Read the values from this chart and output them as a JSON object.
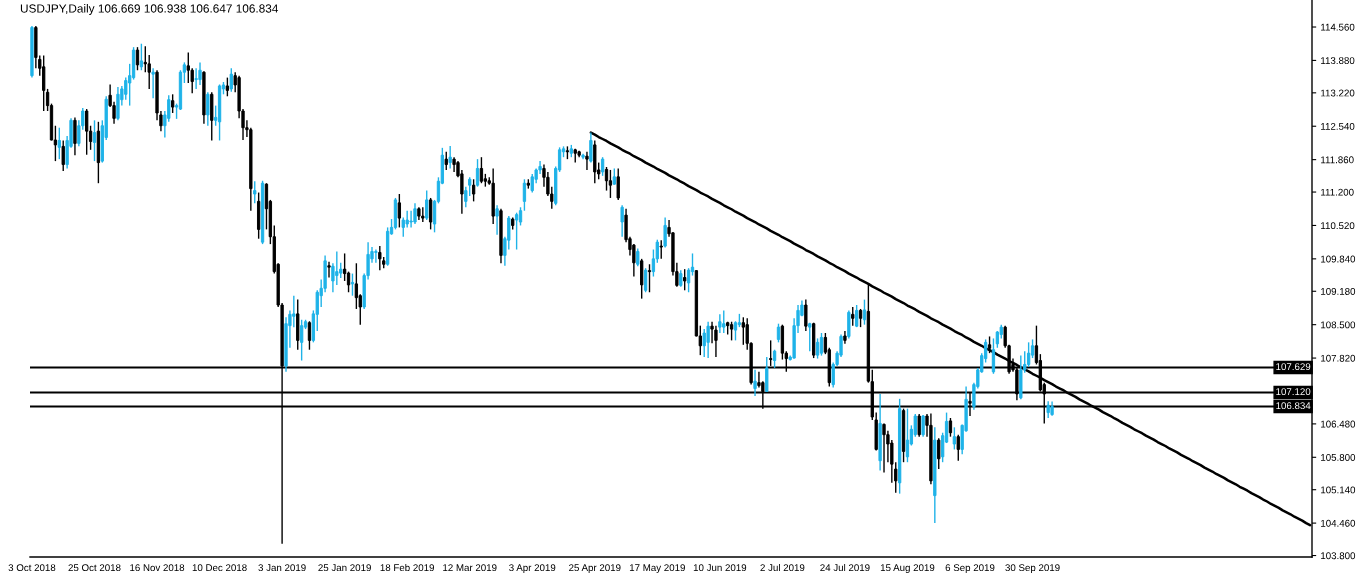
{
  "chart_data": {
    "type": "candlestick",
    "title": "USDJPY,Daily 106.669 106.938 106.647 106.834",
    "categories": [
      "3 Oct 2018",
      null,
      null,
      null,
      null,
      null,
      null,
      null,
      null,
      null,
      null,
      null,
      null,
      null,
      null,
      null,
      "25 Oct 2018",
      null,
      null,
      null,
      null,
      null,
      null,
      null,
      null,
      null,
      null,
      null,
      null,
      null,
      null,
      null,
      "16 Nov 2018",
      null,
      null,
      null,
      null,
      null,
      null,
      null,
      null,
      null,
      null,
      null,
      null,
      null,
      null,
      null,
      "10 Dec 2018",
      null,
      null,
      null,
      null,
      null,
      null,
      null,
      null,
      null,
      null,
      null,
      null,
      null,
      null,
      null,
      "3 Jan 2019",
      null,
      null,
      null,
      null,
      null,
      null,
      null,
      null,
      null,
      null,
      null,
      null,
      null,
      null,
      null,
      "25 Jan 2019",
      null,
      null,
      null,
      null,
      null,
      null,
      null,
      null,
      null,
      null,
      null,
      null,
      null,
      null,
      null,
      "18 Feb 2019",
      null,
      null,
      null,
      null,
      null,
      null,
      null,
      null,
      null,
      null,
      null,
      null,
      null,
      null,
      null,
      "12 Mar 2019",
      null,
      null,
      null,
      null,
      null,
      null,
      null,
      null,
      null,
      null,
      null,
      null,
      null,
      null,
      null,
      "3 Apr 2019",
      null,
      null,
      null,
      null,
      null,
      null,
      null,
      null,
      null,
      null,
      null,
      null,
      null,
      null,
      null,
      "25 Apr 2019",
      null,
      null,
      null,
      null,
      null,
      null,
      null,
      null,
      null,
      null,
      null,
      null,
      null,
      null,
      null,
      "17 May 2019",
      null,
      null,
      null,
      null,
      null,
      null,
      null,
      null,
      null,
      null,
      null,
      null,
      null,
      null,
      null,
      "10 Jun 2019",
      null,
      null,
      null,
      null,
      null,
      null,
      null,
      null,
      null,
      null,
      null,
      null,
      null,
      null,
      null,
      "2 Jul 2019",
      null,
      null,
      null,
      null,
      null,
      null,
      null,
      null,
      null,
      null,
      null,
      null,
      null,
      null,
      null,
      "24 Jul 2019",
      null,
      null,
      null,
      null,
      null,
      null,
      null,
      null,
      null,
      null,
      null,
      null,
      null,
      null,
      null,
      "15 Aug 2019",
      null,
      null,
      null,
      null,
      null,
      null,
      null,
      null,
      null,
      null,
      null,
      null,
      null,
      null,
      null,
      "6 Sep 2019",
      null,
      null,
      null,
      null,
      null,
      null,
      null,
      null,
      null,
      null,
      null,
      null,
      null,
      null,
      null,
      "30 Sep 2019",
      null,
      null,
      null,
      null,
      null,
      null,
      null,
      null,
      null,
      null,
      null,
      null,
      null,
      null,
      null,
      null,
      null,
      null,
      null,
      null,
      null,
      null,
      null,
      null,
      null,
      null,
      null,
      null,
      null,
      null,
      null,
      null,
      null,
      null,
      null,
      null,
      null,
      null,
      null,
      null,
      null,
      null,
      null,
      null,
      null,
      null,
      null,
      null,
      null,
      null,
      null,
      null,
      null,
      null,
      null,
      null,
      null,
      null,
      null,
      null,
      null,
      null,
      null,
      null,
      null,
      null,
      null,
      null,
      null,
      null,
      null
    ],
    "ohlc": [
      [
        113.57,
        114.58,
        113.53,
        114.55
      ],
      [
        114.55,
        114.58,
        113.72,
        113.94
      ],
      [
        113.9,
        113.98,
        113.57,
        113.72
      ],
      [
        113.75,
        113.98,
        112.85,
        113.27
      ],
      [
        113.23,
        113.3,
        112.85,
        112.96
      ],
      [
        112.96,
        113.0,
        112.25,
        112.26
      ],
      [
        112.26,
        112.55,
        111.83,
        112.16
      ],
      [
        112.11,
        112.51,
        111.87,
        112.25
      ],
      [
        112.13,
        112.25,
        111.63,
        111.76
      ],
      [
        111.76,
        112.34,
        111.68,
        112.25
      ],
      [
        112.13,
        112.7,
        112.1,
        112.66
      ],
      [
        112.66,
        112.72,
        111.95,
        112.19
      ],
      [
        112.19,
        112.66,
        112.13,
        112.55
      ],
      [
        112.55,
        112.91,
        112.47,
        112.85
      ],
      [
        112.85,
        112.89,
        111.96,
        112.44
      ],
      [
        112.44,
        112.55,
        112.06,
        112.23
      ],
      [
        112.21,
        112.66,
        111.83,
        112.41
      ],
      [
        112.44,
        112.63,
        111.38,
        111.8
      ],
      [
        111.83,
        112.66,
        111.8,
        112.55
      ],
      [
        112.31,
        113.15,
        112.26,
        113.09
      ],
      [
        113.17,
        113.39,
        112.93,
        112.96
      ],
      [
        112.96,
        113.04,
        112.59,
        112.7
      ],
      [
        112.7,
        113.34,
        112.66,
        113.19
      ],
      [
        113.08,
        113.36,
        112.96,
        113.3
      ],
      [
        113.19,
        113.53,
        113.08,
        113.47
      ],
      [
        113.42,
        113.81,
        112.96,
        113.57
      ],
      [
        113.53,
        114.15,
        113.49,
        114.09
      ],
      [
        114.09,
        114.15,
        113.68,
        113.79
      ],
      [
        113.75,
        114.22,
        113.68,
        113.87
      ],
      [
        113.84,
        114.17,
        113.64,
        113.81
      ],
      [
        113.81,
        113.99,
        113.3,
        113.64
      ],
      [
        113.6,
        113.72,
        113.11,
        113.64
      ],
      [
        113.64,
        113.68,
        112.66,
        112.81
      ],
      [
        112.77,
        112.85,
        112.44,
        112.55
      ],
      [
        112.55,
        112.85,
        112.31,
        112.77
      ],
      [
        112.7,
        113.17,
        112.63,
        113.08
      ],
      [
        113.06,
        113.19,
        112.81,
        112.93
      ],
      [
        112.93,
        113.0,
        112.69,
        112.96
      ],
      [
        112.89,
        113.68,
        112.87,
        113.64
      ],
      [
        113.64,
        113.84,
        113.42,
        113.79
      ],
      [
        113.77,
        114.04,
        113.42,
        113.68
      ],
      [
        113.68,
        113.72,
        113.21,
        113.45
      ],
      [
        113.49,
        113.72,
        113.3,
        113.51
      ],
      [
        113.49,
        113.84,
        113.38,
        113.68
      ],
      [
        113.64,
        113.66,
        112.59,
        112.77
      ],
      [
        112.77,
        113.23,
        112.55,
        113.19
      ],
      [
        113.19,
        113.23,
        112.25,
        112.66
      ],
      [
        112.66,
        112.96,
        112.55,
        112.72
      ],
      [
        112.63,
        113.39,
        112.25,
        113.36
      ],
      [
        113.3,
        113.44,
        113.19,
        113.38
      ],
      [
        113.36,
        113.53,
        113.15,
        113.27
      ],
      [
        113.3,
        113.72,
        113.24,
        113.6
      ],
      [
        113.57,
        113.64,
        113.23,
        113.38
      ],
      [
        113.53,
        113.57,
        112.7,
        112.85
      ],
      [
        112.85,
        112.89,
        112.26,
        112.51
      ],
      [
        112.51,
        112.66,
        112.32,
        112.47
      ],
      [
        112.47,
        112.51,
        110.82,
        111.27
      ],
      [
        111.16,
        111.42,
        110.97,
        111.23
      ],
      [
        111.01,
        111.19,
        110.25,
        110.44
      ],
      [
        110.18,
        111.43,
        110.14,
        111.38
      ],
      [
        111.36,
        111.38,
        110.44,
        110.86
      ],
      [
        111.01,
        111.04,
        110.14,
        110.29
      ],
      [
        110.29,
        110.52,
        109.54,
        109.58
      ],
      [
        109.73,
        109.75,
        108.86,
        108.9
      ],
      [
        108.9,
        108.94,
        104.04,
        107.66
      ],
      [
        107.66,
        108.65,
        107.54,
        108.52
      ],
      [
        108.48,
        108.79,
        108.03,
        108.71
      ],
      [
        108.67,
        109.09,
        108.45,
        108.72
      ],
      [
        108.72,
        109.01,
        107.99,
        108.18
      ],
      [
        108.14,
        108.6,
        107.77,
        108.48
      ],
      [
        108.45,
        108.6,
        108.41,
        108.56
      ],
      [
        108.54,
        108.57,
        107.99,
        108.18
      ],
      [
        108.18,
        108.79,
        108.14,
        108.72
      ],
      [
        108.71,
        109.2,
        108.37,
        109.16
      ],
      [
        109.09,
        109.42,
        108.86,
        109.24
      ],
      [
        109.24,
        109.91,
        109.16,
        109.8
      ],
      [
        109.7,
        109.78,
        109.46,
        109.67
      ],
      [
        109.39,
        109.75,
        109.16,
        109.69
      ],
      [
        109.5,
        109.99,
        109.31,
        109.58
      ],
      [
        109.55,
        109.76,
        109.45,
        109.63
      ],
      [
        109.63,
        109.95,
        109.39,
        109.54
      ],
      [
        109.55,
        109.58,
        109.16,
        109.31
      ],
      [
        109.33,
        109.54,
        109.09,
        109.36
      ],
      [
        109.33,
        109.75,
        108.82,
        109.05
      ],
      [
        109.09,
        109.12,
        108.5,
        108.86
      ],
      [
        108.86,
        109.54,
        108.82,
        109.5
      ],
      [
        109.5,
        110.18,
        109.42,
        109.93
      ],
      [
        109.84,
        110.08,
        109.76,
        109.99
      ],
      [
        109.97,
        110.03,
        109.76,
        109.99
      ],
      [
        109.97,
        110.1,
        109.61,
        109.84
      ],
      [
        109.8,
        109.88,
        109.65,
        109.73
      ],
      [
        109.73,
        110.48,
        109.7,
        110.4
      ],
      [
        110.35,
        110.65,
        110.33,
        110.48
      ],
      [
        110.48,
        111.08,
        110.44,
        111.04
      ],
      [
        110.98,
        111.16,
        110.48,
        110.67
      ],
      [
        110.48,
        110.68,
        110.29,
        110.63
      ],
      [
        110.55,
        110.82,
        110.48,
        110.63
      ],
      [
        110.59,
        110.82,
        110.48,
        110.61
      ],
      [
        110.59,
        110.97,
        110.55,
        110.86
      ],
      [
        110.86,
        110.89,
        110.63,
        110.71
      ],
      [
        110.71,
        110.89,
        110.59,
        110.67
      ],
      [
        110.67,
        111.23,
        110.63,
        111.04
      ],
      [
        111.04,
        111.08,
        110.44,
        110.59
      ],
      [
        110.55,
        111.04,
        110.38,
        111.01
      ],
      [
        111.01,
        111.5,
        110.97,
        111.42
      ],
      [
        111.38,
        112.1,
        111.36,
        111.95
      ],
      [
        111.87,
        112.02,
        111.65,
        111.76
      ],
      [
        111.8,
        112.14,
        111.68,
        111.91
      ],
      [
        111.87,
        111.91,
        111.61,
        111.76
      ],
      [
        111.8,
        111.83,
        111.5,
        111.53
      ],
      [
        111.57,
        111.65,
        110.76,
        111.16
      ],
      [
        111.01,
        111.31,
        110.89,
        111.23
      ],
      [
        111.34,
        111.5,
        111.12,
        111.46
      ],
      [
        111.34,
        111.46,
        111.01,
        111.16
      ],
      [
        111.34,
        111.87,
        111.31,
        111.68
      ],
      [
        111.68,
        111.91,
        111.38,
        111.42
      ],
      [
        111.47,
        111.57,
        111.31,
        111.42
      ],
      [
        111.43,
        111.5,
        111.35,
        111.38
      ],
      [
        111.38,
        111.68,
        110.55,
        110.71
      ],
      [
        110.71,
        110.93,
        110.33,
        110.86
      ],
      [
        110.82,
        110.86,
        109.75,
        109.91
      ],
      [
        109.91,
        110.29,
        109.7,
        110.25
      ],
      [
        110.22,
        110.71,
        110.03,
        110.67
      ],
      [
        110.65,
        110.68,
        110.44,
        110.52
      ],
      [
        110.63,
        110.78,
        110.03,
        110.74
      ],
      [
        110.59,
        110.89,
        110.52,
        110.82
      ],
      [
        111.01,
        111.46,
        110.82,
        111.38
      ],
      [
        111.38,
        111.46,
        111.27,
        111.34
      ],
      [
        111.23,
        111.57,
        111.19,
        111.51
      ],
      [
        111.46,
        111.68,
        111.38,
        111.65
      ],
      [
        111.65,
        111.83,
        111.57,
        111.72
      ],
      [
        111.68,
        111.76,
        111.31,
        111.5
      ],
      [
        111.5,
        111.61,
        111.12,
        111.16
      ],
      [
        111.16,
        111.31,
        110.86,
        111.01
      ],
      [
        110.97,
        111.72,
        110.93,
        111.68
      ],
      [
        111.65,
        112.11,
        111.61,
        112.06
      ],
      [
        112.02,
        112.13,
        111.91,
        112.08
      ],
      [
        112.04,
        112.13,
        111.87,
        112.02
      ],
      [
        111.99,
        112.16,
        111.91,
        112.08
      ],
      [
        112.06,
        112.08,
        111.8,
        111.99
      ],
      [
        112.02,
        112.04,
        111.91,
        111.95
      ],
      [
        111.91,
        111.98,
        111.87,
        111.95
      ],
      [
        111.93,
        112.02,
        111.65,
        111.87
      ],
      [
        111.83,
        112.41,
        111.8,
        112.25
      ],
      [
        112.16,
        112.25,
        111.38,
        111.61
      ],
      [
        111.65,
        111.8,
        111.46,
        111.57
      ],
      [
        111.61,
        111.91,
        111.53,
        111.87
      ],
      [
        111.66,
        111.71,
        111.23,
        111.43
      ],
      [
        111.43,
        111.65,
        111.08,
        111.34
      ],
      [
        111.36,
        111.68,
        111.35,
        111.51
      ],
      [
        111.51,
        111.68,
        111.04,
        111.08
      ],
      [
        110.59,
        110.93,
        110.29,
        110.89
      ],
      [
        110.73,
        110.86,
        110.18,
        110.23
      ],
      [
        110.25,
        110.29,
        109.91,
        110.03
      ],
      [
        110.12,
        110.14,
        109.48,
        109.76
      ],
      [
        109.73,
        110.05,
        109.69,
        109.99
      ],
      [
        109.8,
        109.84,
        109.03,
        109.31
      ],
      [
        109.2,
        109.65,
        109.16,
        109.61
      ],
      [
        109.6,
        109.73,
        109.16,
        109.58
      ],
      [
        109.58,
        110.03,
        109.48,
        109.84
      ],
      [
        109.84,
        110.23,
        109.76,
        110.18
      ],
      [
        110.1,
        110.22,
        109.84,
        110.08
      ],
      [
        110.1,
        110.68,
        110.07,
        110.52
      ],
      [
        110.48,
        110.63,
        110.29,
        110.35
      ],
      [
        110.37,
        110.38,
        109.5,
        109.58
      ],
      [
        109.58,
        109.76,
        109.27,
        109.3
      ],
      [
        109.3,
        109.61,
        109.27,
        109.54
      ],
      [
        109.46,
        109.63,
        109.2,
        109.39
      ],
      [
        109.35,
        109.65,
        109.16,
        109.61
      ],
      [
        109.58,
        109.95,
        109.5,
        109.67
      ],
      [
        109.6,
        109.61,
        108.26,
        108.27
      ],
      [
        108.27,
        108.48,
        107.88,
        108.07
      ],
      [
        108.07,
        108.41,
        107.84,
        108.33
      ],
      [
        108.14,
        108.56,
        107.82,
        108.47
      ],
      [
        108.47,
        108.56,
        108.12,
        108.41
      ],
      [
        108.39,
        108.48,
        107.84,
        108.18
      ],
      [
        108.45,
        108.71,
        108.33,
        108.56
      ],
      [
        108.45,
        108.79,
        108.33,
        108.52
      ],
      [
        108.54,
        108.56,
        108.3,
        108.48
      ],
      [
        108.5,
        108.56,
        108.18,
        108.41
      ],
      [
        108.39,
        108.57,
        108.18,
        108.54
      ],
      [
        108.5,
        108.72,
        108.45,
        108.54
      ],
      [
        108.54,
        108.65,
        108.09,
        108.45
      ],
      [
        108.5,
        108.63,
        107.99,
        108.12
      ],
      [
        108.12,
        108.14,
        107.28,
        107.32
      ],
      [
        107.2,
        107.58,
        107.05,
        107.35
      ],
      [
        107.32,
        107.54,
        107.22,
        107.26
      ],
      [
        107.32,
        107.35,
        106.79,
        107.14
      ],
      [
        107.14,
        107.84,
        107.13,
        107.62
      ],
      [
        107.81,
        108.18,
        107.66,
        107.79
      ],
      [
        107.77,
        107.99,
        107.62,
        107.96
      ],
      [
        108.2,
        108.52,
        108.14,
        108.45
      ],
      [
        108.47,
        108.5,
        107.79,
        107.92
      ],
      [
        107.92,
        107.96,
        107.54,
        107.81
      ],
      [
        107.79,
        107.87,
        107.77,
        107.84
      ],
      [
        107.82,
        108.63,
        107.81,
        108.48
      ],
      [
        108.48,
        108.9,
        108.33,
        108.79
      ],
      [
        108.69,
        108.99,
        108.67,
        108.9
      ],
      [
        108.9,
        109.01,
        108.37,
        108.47
      ],
      [
        108.45,
        108.54,
        107.96,
        108.52
      ],
      [
        108.52,
        108.54,
        107.82,
        107.88
      ],
      [
        107.88,
        108.22,
        107.81,
        108.14
      ],
      [
        107.92,
        108.33,
        107.87,
        108.24
      ],
      [
        108.24,
        108.33,
        107.9,
        107.94
      ],
      [
        107.99,
        108.03,
        107.24,
        107.32
      ],
      [
        107.28,
        107.73,
        107.22,
        107.69
      ],
      [
        107.69,
        107.96,
        107.66,
        107.92
      ],
      [
        107.88,
        108.3,
        107.84,
        108.26
      ],
      [
        108.27,
        108.37,
        108.11,
        108.18
      ],
      [
        108.26,
        108.79,
        108.22,
        108.75
      ],
      [
        108.71,
        108.86,
        108.48,
        108.63
      ],
      [
        108.47,
        108.9,
        108.45,
        108.79
      ],
      [
        108.79,
        108.82,
        108.45,
        108.63
      ],
      [
        108.6,
        109.01,
        108.5,
        108.8
      ],
      [
        108.77,
        109.33,
        107.32,
        107.35
      ],
      [
        107.34,
        107.58,
        106.56,
        106.62
      ],
      [
        106.56,
        106.71,
        105.94,
        105.96
      ],
      [
        105.73,
        107.09,
        105.53,
        106.49
      ],
      [
        106.47,
        106.49,
        105.49,
        106.26
      ],
      [
        106.26,
        106.34,
        105.7,
        106.07
      ],
      [
        106.09,
        106.15,
        105.28,
        105.66
      ],
      [
        105.56,
        105.7,
        105.08,
        105.32
      ],
      [
        105.28,
        106.99,
        105.06,
        106.79
      ],
      [
        106.75,
        106.79,
        105.7,
        105.92
      ],
      [
        105.81,
        106.79,
        105.7,
        106.15
      ],
      [
        106.07,
        106.45,
        106.04,
        106.37
      ],
      [
        106.26,
        106.68,
        106.22,
        106.64
      ],
      [
        106.64,
        106.68,
        106.22,
        106.26
      ],
      [
        106.26,
        106.66,
        106.22,
        106.64
      ],
      [
        106.64,
        106.68,
        106.22,
        106.45
      ],
      [
        106.45,
        106.69,
        105.25,
        105.32
      ],
      [
        105.02,
        106.41,
        104.46,
        106.15
      ],
      [
        106.15,
        106.19,
        105.56,
        105.77
      ],
      [
        105.81,
        106.3,
        105.7,
        106.24
      ],
      [
        106.11,
        106.71,
        106.09,
        106.53
      ],
      [
        106.54,
        106.6,
        106.22,
        106.3
      ],
      [
        106.07,
        106.41,
        105.96,
        106.22
      ],
      [
        106.22,
        106.26,
        105.73,
        105.96
      ],
      [
        105.96,
        106.47,
        105.86,
        106.45
      ],
      [
        106.34,
        107.24,
        106.32,
        106.98
      ],
      [
        106.94,
        107.13,
        106.64,
        106.9
      ],
      [
        106.83,
        107.32,
        106.77,
        107.28
      ],
      [
        107.24,
        107.62,
        107.2,
        107.58
      ],
      [
        107.54,
        107.92,
        107.52,
        107.87
      ],
      [
        107.81,
        108.2,
        107.73,
        108.14
      ],
      [
        108.09,
        108.26,
        107.92,
        108.02
      ],
      [
        107.54,
        108.22,
        107.5,
        107.99
      ],
      [
        108.11,
        108.37,
        108.03,
        108.35
      ],
      [
        108.3,
        108.5,
        108.22,
        108.45
      ],
      [
        108.45,
        108.48,
        108.03,
        108.07
      ],
      [
        108.07,
        108.09,
        107.5,
        107.54
      ],
      [
        107.69,
        107.81,
        107.54,
        107.58
      ],
      [
        107.58,
        107.62,
        106.96,
        107.09
      ],
      [
        107.01,
        107.87,
        106.98,
        107.58
      ],
      [
        107.58,
        107.96,
        107.52,
        107.69
      ],
      [
        107.69,
        108.14,
        107.64,
        107.92
      ],
      [
        107.88,
        108.2,
        107.82,
        108.07
      ],
      [
        108.07,
        108.48,
        107.69,
        107.73
      ],
      [
        107.77,
        107.9,
        107.14,
        107.17
      ],
      [
        107.28,
        107.32,
        106.49,
        107.09
      ],
      [
        106.71,
        106.94,
        106.6,
        106.86
      ],
      [
        106.669,
        106.938,
        106.647,
        106.834
      ],
      null,
      null,
      null,
      null,
      null,
      null,
      null,
      null,
      null,
      null,
      null,
      null,
      null,
      null,
      null,
      null,
      null,
      null,
      null,
      null,
      null,
      null,
      null,
      null,
      null,
      null,
      null,
      null,
      null,
      null,
      null,
      null,
      null,
      null,
      null,
      null,
      null,
      null,
      null,
      null,
      null,
      null,
      null,
      null,
      null,
      null,
      null,
      null,
      null,
      null,
      null,
      null,
      null,
      null,
      null,
      null,
      null,
      null,
      null,
      null,
      null,
      null,
      null,
      null,
      null,
      null
    ],
    "colors": [
      "#1fb3e8",
      "#000000",
      "#000000",
      "#000000",
      "#000000",
      "#000000",
      "#000000",
      "#1fb3e8",
      "#000000",
      "#1fb3e8",
      "#1fb3e8",
      "#000000",
      "#1fb3e8",
      "#1fb3e8",
      "#000000",
      "#000000",
      "#1fb3e8",
      "#000000",
      "#1fb3e8",
      "#1fb3e8",
      "#000000",
      "#000000",
      "#1fb3e8",
      "#1fb3e8",
      "#1fb3e8",
      "#1fb3e8",
      "#1fb3e8",
      "#000000",
      "#1fb3e8",
      "#000000",
      "#000000",
      "#1fb3e8",
      "#000000",
      "#000000",
      "#1fb3e8",
      "#1fb3e8",
      "#000000",
      "#1fb3e8",
      "#1fb3e8",
      "#1fb3e8",
      "#000000",
      "#000000",
      "#1fb3e8",
      "#1fb3e8",
      "#000000",
      "#1fb3e8",
      "#000000",
      "#1fb3e8",
      "#1fb3e8",
      "#1fb3e8",
      "#000000",
      "#1fb3e8",
      "#000000",
      "#000000",
      "#000000",
      "#000000",
      "#000000",
      "#1fb3e8",
      "#000000",
      "#1fb3e8",
      "#000000",
      "#000000",
      "#000000",
      "#000000",
      "#000000",
      "#1fb3e8",
      "#1fb3e8",
      "#1fb3e8",
      "#000000",
      "#1fb3e8",
      "#1fb3e8",
      "#000000",
      "#1fb3e8",
      "#1fb3e8",
      "#1fb3e8",
      "#1fb3e8",
      "#000000",
      "#1fb3e8",
      "#1fb3e8",
      "#1fb3e8",
      "#000000",
      "#000000",
      "#1fb3e8",
      "#000000",
      "#000000",
      "#1fb3e8",
      "#1fb3e8",
      "#1fb3e8",
      "#1fb3e8",
      "#000000",
      "#000000",
      "#1fb3e8",
      "#1fb3e8",
      "#1fb3e8",
      "#000000",
      "#1fb3e8",
      "#1fb3e8",
      "#1fb3e8",
      "#1fb3e8",
      "#000000",
      "#000000",
      "#1fb3e8",
      "#000000",
      "#1fb3e8",
      "#1fb3e8",
      "#1fb3e8",
      "#000000",
      "#1fb3e8",
      "#000000",
      "#000000",
      "#000000",
      "#1fb3e8",
      "#1fb3e8",
      "#000000",
      "#1fb3e8",
      "#000000",
      "#000000",
      "#000000",
      "#000000",
      "#1fb3e8",
      "#000000",
      "#1fb3e8",
      "#1fb3e8",
      "#000000",
      "#1fb3e8",
      "#1fb3e8",
      "#1fb3e8",
      "#000000",
      "#1fb3e8",
      "#1fb3e8",
      "#1fb3e8",
      "#000000",
      "#000000",
      "#000000",
      "#1fb3e8",
      "#1fb3e8",
      "#1fb3e8",
      "#000000",
      "#1fb3e8",
      "#000000",
      "#000000",
      "#1fb3e8",
      "#000000",
      "#1fb3e8",
      "#000000",
      "#000000",
      "#1fb3e8",
      "#000000",
      "#000000",
      "#1fb3e8",
      "#000000",
      "#1fb3e8",
      "#000000",
      "#000000",
      "#000000",
      "#1fb3e8",
      "#000000",
      "#1fb3e8",
      "#000000",
      "#1fb3e8",
      "#1fb3e8",
      "#000000",
      "#1fb3e8",
      "#000000",
      "#000000",
      "#000000",
      "#1fb3e8",
      "#000000",
      "#1fb3e8",
      "#1fb3e8",
      "#000000",
      "#000000",
      "#1fb3e8",
      "#1fb3e8",
      "#000000",
      "#000000",
      "#1fb3e8",
      "#1fb3e8",
      "#000000",
      "#000000",
      "#1fb3e8",
      "#1fb3e8",
      "#000000",
      "#000000",
      "#000000",
      "#1fb3e8",
      "#000000",
      "#000000",
      "#1fb3e8",
      "#000000",
      "#1fb3e8",
      "#1fb3e8",
      "#000000",
      "#000000",
      "#1fb3e8",
      "#1fb3e8",
      "#1fb3e8",
      "#1fb3e8",
      "#000000",
      "#1fb3e8",
      "#000000",
      "#1fb3e8",
      "#1fb3e8",
      "#000000",
      "#000000",
      "#1fb3e8",
      "#1fb3e8",
      "#1fb3e8",
      "#000000",
      "#1fb3e8",
      "#000000",
      "#1fb3e8",
      "#000000",
      "#1fb3e8",
      "#000000",
      "#000000",
      "#000000",
      "#1fb3e8",
      "#000000",
      "#000000",
      "#000000",
      "#000000",
      "#1fb3e8",
      "#000000",
      "#1fb3e8",
      "#1fb3e8",
      "#1fb3e8",
      "#000000",
      "#1fb3e8",
      "#000000",
      "#000000",
      "#1fb3e8",
      "#000000",
      "#1fb3e8",
      "#1fb3e8",
      "#000000",
      "#1fb3e8",
      "#000000",
      "#1fb3e8",
      "#1fb3e8",
      "#000000",
      "#1fb3e8",
      "#1fb3e8",
      "#1fb3e8",
      "#1fb3e8",
      "#000000",
      "#1fb3e8",
      "#1fb3e8",
      "#1fb3e8",
      "#000000",
      "#000000",
      "#000000",
      "#000000",
      "#1fb3e8",
      "#1fb3e8",
      "#1fb3e8",
      "#1fb3e8",
      "#000000",
      "#000000",
      "#000000",
      "#1fb3e8",
      "#1fb3e8",
      null,
      null,
      null,
      null,
      null,
      null,
      null,
      null,
      null,
      null,
      null,
      null,
      null,
      null,
      null,
      null,
      null,
      null,
      null,
      null,
      null,
      null,
      null,
      null,
      null,
      null,
      null,
      null,
      null,
      null,
      null,
      null,
      null,
      null,
      null,
      null,
      null,
      null,
      null,
      null,
      null,
      null,
      null,
      null,
      null,
      null,
      null,
      null,
      null,
      null,
      null,
      null,
      null,
      null,
      null,
      null,
      null,
      null,
      null,
      null,
      null,
      null,
      null,
      null,
      null,
      null
    ],
    "series": [
      {
        "type": "line",
        "color": "#000000",
        "values": [
          null,
          null,
          null,
          null,
          null,
          null,
          null,
          null,
          null,
          null,
          null,
          null,
          null,
          null,
          null,
          null,
          null,
          null,
          null,
          null,
          null,
          null,
          null,
          null,
          null,
          null,
          null,
          null,
          null,
          null,
          null,
          null,
          null,
          null,
          null,
          null,
          null,
          null,
          null,
          null,
          null,
          null,
          null,
          null,
          null,
          null,
          null,
          null,
          null,
          null,
          null,
          null,
          null,
          null,
          null,
          null,
          null,
          null,
          null,
          null,
          null,
          null,
          null,
          null,
          null,
          null,
          null,
          null,
          null,
          null,
          null,
          null,
          null,
          null,
          null,
          null,
          null,
          null,
          null,
          null,
          null,
          null,
          null,
          null,
          null,
          null,
          null,
          null,
          null,
          null,
          null,
          null,
          null,
          null,
          null,
          null,
          null,
          null,
          null,
          null,
          null,
          null,
          null,
          null,
          null,
          null,
          null,
          null,
          null,
          null,
          null,
          null,
          null,
          null,
          null,
          null,
          null,
          null,
          null,
          null,
          null,
          null,
          null,
          null,
          null,
          null,
          null,
          null,
          null,
          null,
          null,
          null,
          null,
          null,
          null,
          null,
          null,
          null,
          null,
          null,
          null,
          null,
          null,
          112.41,
          112.37,
          112.32,
          112.28,
          112.24,
          112.19,
          112.15,
          112.11,
          112.06,
          112.02,
          111.98,
          111.93,
          111.89,
          111.85,
          111.8,
          111.76,
          111.72,
          111.67,
          111.63,
          111.59,
          111.54,
          111.5,
          111.46,
          111.41,
          111.37,
          111.32,
          111.28,
          111.24,
          111.19,
          111.15,
          111.11,
          111.06,
          111.02,
          110.98,
          110.93,
          110.89,
          110.85,
          110.8,
          110.76,
          110.72,
          110.67,
          110.63,
          110.59,
          110.54,
          110.5,
          110.46,
          110.41,
          110.37,
          110.33,
          110.28,
          110.24,
          110.2,
          110.15,
          110.11,
          110.07,
          110.02,
          109.98,
          109.94,
          109.89,
          109.85,
          109.81,
          109.76,
          109.72,
          109.67,
          109.63,
          109.59,
          109.54,
          109.5,
          109.46,
          109.41,
          109.37,
          109.33,
          109.28,
          109.24,
          109.2,
          109.15,
          109.11,
          109.07,
          109.02,
          108.98,
          108.94,
          108.89,
          108.85,
          108.81,
          108.76,
          108.72,
          108.68,
          108.63,
          108.59,
          108.55,
          108.5,
          108.46,
          108.42,
          108.37,
          108.33,
          108.29,
          108.24,
          108.2,
          108.15,
          108.11,
          108.07,
          108.02,
          107.98,
          107.94,
          107.89,
          107.85,
          107.81,
          107.76,
          107.72,
          107.68,
          107.63,
          107.59,
          107.55,
          107.5,
          107.46,
          107.42,
          107.37,
          107.33,
          107.29,
          107.24,
          107.2,
          107.16,
          107.11,
          107.07,
          107.03,
          106.98,
          106.94,
          106.9,
          106.85,
          106.81,
          106.77,
          106.72,
          106.68,
          106.64,
          106.59,
          106.55,
          106.5,
          106.46,
          106.42,
          106.37,
          106.33,
          106.29,
          106.24,
          106.2,
          106.16,
          106.11,
          106.07,
          106.03,
          105.98,
          105.94,
          105.9,
          105.85,
          105.81,
          105.77,
          105.72,
          105.68,
          105.64,
          105.59,
          105.55,
          105.51,
          105.46,
          105.42,
          105.38,
          105.33,
          105.29,
          105.25,
          105.2,
          105.16,
          105.12,
          105.07,
          105.03,
          104.99,
          104.94,
          104.9,
          104.85,
          104.81,
          104.77,
          104.72,
          104.68,
          104.64,
          104.59,
          104.55,
          104.51,
          104.46,
          104.42
        ]
      }
    ],
    "ylim": [
      103.77,
      115.11
    ],
    "yticks": [
      {
        "value": 114.56,
        "label": "114.560"
      },
      {
        "value": 113.88,
        "label": "113.880"
      },
      {
        "value": 113.22,
        "label": "113.220"
      },
      {
        "value": 112.54,
        "label": "112.540"
      },
      {
        "value": 111.86,
        "label": "111.860"
      },
      {
        "value": 111.2,
        "label": "111.200"
      },
      {
        "value": 110.52,
        "label": "110.520"
      },
      {
        "value": 109.84,
        "label": "109.840"
      },
      {
        "value": 109.18,
        "label": "109.180"
      },
      {
        "value": 108.5,
        "label": "108.500"
      },
      {
        "value": 107.82,
        "label": "107.820"
      },
      {
        "value": 106.48,
        "label": "106.480"
      },
      {
        "value": 105.8,
        "label": "105.800"
      },
      {
        "value": 105.14,
        "label": "105.140"
      },
      {
        "value": 104.46,
        "label": "104.460"
      },
      {
        "value": 103.8,
        "label": "103.800"
      }
    ],
    "ref_lines": [
      {
        "axis": "y",
        "value": 107.629,
        "label": "107.629",
        "color": "#000000"
      },
      {
        "axis": "y",
        "value": 107.12,
        "label": "107.120",
        "color": "#000000"
      },
      {
        "axis": "y",
        "value": 106.834,
        "label": "106.834",
        "color": "#000000"
      }
    ]
  }
}
